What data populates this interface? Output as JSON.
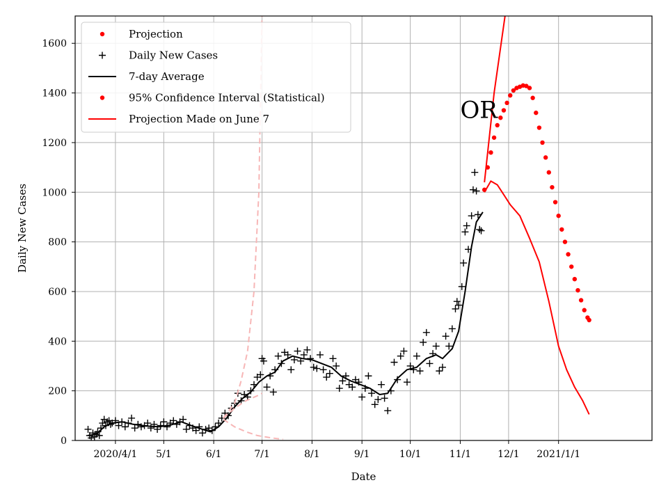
{
  "chart_data": {
    "type": "line",
    "title": "",
    "xlabel": "Date",
    "ylabel": "Daily New Cases",
    "xlim": [
      "2020-03-07",
      "2021-02-28"
    ],
    "ylim": [
      0,
      1710
    ],
    "grid": true,
    "legend_position": "top-left",
    "x_ticks": [
      {
        "date": "2020-04-01",
        "label": "2020/4/1"
      },
      {
        "date": "2020-05-01",
        "label": "5/1"
      },
      {
        "date": "2020-06-01",
        "label": "6/1"
      },
      {
        "date": "2020-07-01",
        "label": "7/1"
      },
      {
        "date": "2020-08-01",
        "label": "8/1"
      },
      {
        "date": "2020-09-01",
        "label": "9/1"
      },
      {
        "date": "2020-10-01",
        "label": "10/1"
      },
      {
        "date": "2020-11-01",
        "label": "11/1"
      },
      {
        "date": "2020-12-01",
        "label": "12/1"
      },
      {
        "date": "2021-01-01",
        "label": "2021/1/1"
      }
    ],
    "y_ticks": [
      0,
      200,
      400,
      600,
      800,
      1000,
      1200,
      1400,
      1600
    ],
    "legend": [
      {
        "label": "Projection",
        "marker": "dot",
        "color": "#ff0000"
      },
      {
        "label": "Daily New Cases",
        "marker": "plus",
        "color": "#000000"
      },
      {
        "label": "7-day Average",
        "marker": "line",
        "color": "#000000"
      },
      {
        "label": "95% Confidence Interval (Statistical)",
        "marker": "dot",
        "color": "#ff0000"
      },
      {
        "label": "Projection Made on June 7",
        "marker": "line",
        "color": "#ff0000"
      }
    ],
    "annotations": [
      {
        "text": "OR",
        "date": "2020-11-01",
        "value": 1300
      }
    ],
    "series": [
      {
        "name": "Daily New Cases",
        "style": "plus",
        "color": "#000000",
        "points": [
          [
            "2020-03-15",
            45
          ],
          [
            "2020-03-16",
            20
          ],
          [
            "2020-03-17",
            10
          ],
          [
            "2020-03-18",
            30
          ],
          [
            "2020-03-19",
            15
          ],
          [
            "2020-03-20",
            25
          ],
          [
            "2020-03-21",
            35
          ],
          [
            "2020-03-22",
            20
          ],
          [
            "2020-03-23",
            50
          ],
          [
            "2020-03-24",
            70
          ],
          [
            "2020-03-25",
            85
          ],
          [
            "2020-03-26",
            60
          ],
          [
            "2020-03-27",
            75
          ],
          [
            "2020-03-28",
            80
          ],
          [
            "2020-03-29",
            65
          ],
          [
            "2020-03-30",
            70
          ],
          [
            "2020-04-01",
            80
          ],
          [
            "2020-04-03",
            60
          ],
          [
            "2020-04-05",
            75
          ],
          [
            "2020-04-07",
            55
          ],
          [
            "2020-04-09",
            70
          ],
          [
            "2020-04-11",
            90
          ],
          [
            "2020-04-13",
            50
          ],
          [
            "2020-04-15",
            65
          ],
          [
            "2020-04-17",
            55
          ],
          [
            "2020-04-19",
            60
          ],
          [
            "2020-04-21",
            70
          ],
          [
            "2020-04-23",
            50
          ],
          [
            "2020-04-25",
            65
          ],
          [
            "2020-04-27",
            45
          ],
          [
            "2020-04-29",
            60
          ],
          [
            "2020-05-01",
            75
          ],
          [
            "2020-05-03",
            55
          ],
          [
            "2020-05-05",
            70
          ],
          [
            "2020-05-07",
            80
          ],
          [
            "2020-05-09",
            65
          ],
          [
            "2020-05-11",
            75
          ],
          [
            "2020-05-13",
            85
          ],
          [
            "2020-05-15",
            45
          ],
          [
            "2020-05-17",
            60
          ],
          [
            "2020-05-19",
            50
          ],
          [
            "2020-05-21",
            40
          ],
          [
            "2020-05-23",
            55
          ],
          [
            "2020-05-25",
            30
          ],
          [
            "2020-05-27",
            45
          ],
          [
            "2020-05-29",
            50
          ],
          [
            "2020-05-31",
            40
          ],
          [
            "2020-06-02",
            55
          ],
          [
            "2020-06-04",
            70
          ],
          [
            "2020-06-06",
            90
          ],
          [
            "2020-06-08",
            110
          ],
          [
            "2020-06-10",
            100
          ],
          [
            "2020-06-12",
            130
          ],
          [
            "2020-06-14",
            150
          ],
          [
            "2020-06-16",
            190
          ],
          [
            "2020-06-18",
            160
          ],
          [
            "2020-06-20",
            185
          ],
          [
            "2020-06-22",
            175
          ],
          [
            "2020-06-24",
            200
          ],
          [
            "2020-06-26",
            225
          ],
          [
            "2020-06-28",
            255
          ],
          [
            "2020-06-30",
            265
          ],
          [
            "2020-07-01",
            330
          ],
          [
            "2020-07-02",
            320
          ],
          [
            "2020-07-04",
            215
          ],
          [
            "2020-07-06",
            260
          ],
          [
            "2020-07-08",
            195
          ],
          [
            "2020-07-09",
            285
          ],
          [
            "2020-07-11",
            340
          ],
          [
            "2020-07-13",
            310
          ],
          [
            "2020-07-15",
            355
          ],
          [
            "2020-07-17",
            345
          ],
          [
            "2020-07-19",
            285
          ],
          [
            "2020-07-21",
            325
          ],
          [
            "2020-07-23",
            360
          ],
          [
            "2020-07-25",
            320
          ],
          [
            "2020-07-27",
            345
          ],
          [
            "2020-07-29",
            365
          ],
          [
            "2020-07-31",
            330
          ],
          [
            "2020-08-02",
            295
          ],
          [
            "2020-08-04",
            290
          ],
          [
            "2020-08-06",
            345
          ],
          [
            "2020-08-08",
            285
          ],
          [
            "2020-08-10",
            255
          ],
          [
            "2020-08-12",
            270
          ],
          [
            "2020-08-14",
            330
          ],
          [
            "2020-08-16",
            300
          ],
          [
            "2020-08-18",
            210
          ],
          [
            "2020-08-20",
            240
          ],
          [
            "2020-08-22",
            260
          ],
          [
            "2020-08-24",
            225
          ],
          [
            "2020-08-26",
            215
          ],
          [
            "2020-08-28",
            245
          ],
          [
            "2020-08-30",
            235
          ],
          [
            "2020-09-01",
            175
          ],
          [
            "2020-09-03",
            210
          ],
          [
            "2020-09-05",
            260
          ],
          [
            "2020-09-07",
            190
          ],
          [
            "2020-09-09",
            145
          ],
          [
            "2020-09-11",
            165
          ],
          [
            "2020-09-13",
            225
          ],
          [
            "2020-09-15",
            170
          ],
          [
            "2020-09-17",
            120
          ],
          [
            "2020-09-19",
            200
          ],
          [
            "2020-09-21",
            315
          ],
          [
            "2020-09-23",
            245
          ],
          [
            "2020-09-25",
            340
          ],
          [
            "2020-09-27",
            360
          ],
          [
            "2020-09-29",
            235
          ],
          [
            "2020-10-01",
            300
          ],
          [
            "2020-10-03",
            285
          ],
          [
            "2020-10-05",
            340
          ],
          [
            "2020-10-07",
            280
          ],
          [
            "2020-10-09",
            395
          ],
          [
            "2020-10-11",
            435
          ],
          [
            "2020-10-13",
            310
          ],
          [
            "2020-10-15",
            350
          ],
          [
            "2020-10-17",
            380
          ],
          [
            "2020-10-19",
            280
          ],
          [
            "2020-10-21",
            295
          ],
          [
            "2020-10-23",
            420
          ],
          [
            "2020-10-25",
            380
          ],
          [
            "2020-10-27",
            450
          ],
          [
            "2020-10-29",
            530
          ],
          [
            "2020-10-30",
            560
          ],
          [
            "2020-10-31",
            545
          ],
          [
            "2020-11-02",
            620
          ],
          [
            "2020-11-03",
            715
          ],
          [
            "2020-11-04",
            840
          ],
          [
            "2020-11-05",
            865
          ],
          [
            "2020-11-06",
            770
          ],
          [
            "2020-11-08",
            905
          ],
          [
            "2020-11-09",
            1010
          ],
          [
            "2020-11-10",
            1080
          ],
          [
            "2020-11-11",
            1005
          ],
          [
            "2020-11-12",
            910
          ],
          [
            "2020-11-13",
            850
          ],
          [
            "2020-11-14",
            845
          ]
        ]
      },
      {
        "name": "7-day Average",
        "style": "line",
        "color": "#000000",
        "points": [
          [
            "2020-03-15",
            20
          ],
          [
            "2020-03-20",
            25
          ],
          [
            "2020-03-25",
            55
          ],
          [
            "2020-03-30",
            70
          ],
          [
            "2020-04-05",
            75
          ],
          [
            "2020-04-12",
            65
          ],
          [
            "2020-04-20",
            58
          ],
          [
            "2020-04-28",
            55
          ],
          [
            "2020-05-05",
            62
          ],
          [
            "2020-05-12",
            75
          ],
          [
            "2020-05-18",
            60
          ],
          [
            "2020-05-25",
            45
          ],
          [
            "2020-05-30",
            35
          ],
          [
            "2020-06-04",
            55
          ],
          [
            "2020-06-09",
            90
          ],
          [
            "2020-06-14",
            135
          ],
          [
            "2020-06-19",
            170
          ],
          [
            "2020-06-24",
            195
          ],
          [
            "2020-06-29",
            235
          ],
          [
            "2020-07-04",
            260
          ],
          [
            "2020-07-09",
            275
          ],
          [
            "2020-07-14",
            320
          ],
          [
            "2020-07-20",
            340
          ],
          [
            "2020-07-26",
            330
          ],
          [
            "2020-08-01",
            325
          ],
          [
            "2020-08-07",
            310
          ],
          [
            "2020-08-13",
            295
          ],
          [
            "2020-08-19",
            260
          ],
          [
            "2020-08-25",
            240
          ],
          [
            "2020-08-31",
            225
          ],
          [
            "2020-09-06",
            210
          ],
          [
            "2020-09-12",
            185
          ],
          [
            "2020-09-17",
            190
          ],
          [
            "2020-09-23",
            250
          ],
          [
            "2020-09-29",
            285
          ],
          [
            "2020-10-05",
            295
          ],
          [
            "2020-10-11",
            330
          ],
          [
            "2020-10-17",
            345
          ],
          [
            "2020-10-21",
            330
          ],
          [
            "2020-10-27",
            370
          ],
          [
            "2020-10-31",
            440
          ],
          [
            "2020-11-04",
            600
          ],
          [
            "2020-11-08",
            780
          ],
          [
            "2020-11-11",
            880
          ],
          [
            "2020-11-15",
            920
          ]
        ]
      },
      {
        "name": "Projection",
        "style": "dots",
        "color": "#ff0000",
        "points": [
          [
            "2020-11-16",
            1010
          ],
          [
            "2020-11-18",
            1100
          ],
          [
            "2020-11-20",
            1160
          ],
          [
            "2020-11-22",
            1220
          ],
          [
            "2020-11-24",
            1270
          ],
          [
            "2020-11-26",
            1300
          ],
          [
            "2020-11-28",
            1330
          ],
          [
            "2020-11-30",
            1360
          ],
          [
            "2020-12-02",
            1390
          ],
          [
            "2020-12-04",
            1410
          ],
          [
            "2020-12-06",
            1420
          ],
          [
            "2020-12-08",
            1425
          ],
          [
            "2020-12-10",
            1430
          ],
          [
            "2020-12-12",
            1428
          ],
          [
            "2020-12-14",
            1420
          ],
          [
            "2020-12-16",
            1380
          ],
          [
            "2020-12-18",
            1320
          ],
          [
            "2020-12-20",
            1260
          ],
          [
            "2020-12-22",
            1200
          ],
          [
            "2020-12-24",
            1140
          ],
          [
            "2020-12-26",
            1080
          ],
          [
            "2020-12-28",
            1020
          ],
          [
            "2020-12-30",
            960
          ],
          [
            "2021-01-01",
            905
          ],
          [
            "2021-01-03",
            850
          ],
          [
            "2021-01-05",
            800
          ],
          [
            "2021-01-07",
            750
          ],
          [
            "2021-01-09",
            700
          ],
          [
            "2021-01-11",
            650
          ],
          [
            "2021-01-13",
            605
          ],
          [
            "2021-01-15",
            565
          ],
          [
            "2021-01-17",
            525
          ],
          [
            "2021-01-19",
            495
          ],
          [
            "2021-01-20",
            485
          ]
        ]
      },
      {
        "name": "95% Confidence Interval (Statistical)",
        "style": "line",
        "color": "#ff0000",
        "points": [
          [
            "2020-11-16",
            1000
          ],
          [
            "2020-11-20",
            1045
          ],
          [
            "2020-11-24",
            1030
          ],
          [
            "2020-11-28",
            990
          ],
          [
            "2020-12-02",
            950
          ],
          [
            "2020-12-08",
            905
          ],
          [
            "2020-12-14",
            815
          ],
          [
            "2020-12-20",
            720
          ],
          [
            "2020-12-26",
            560
          ],
          [
            "2021-01-01",
            380
          ],
          [
            "2021-01-06",
            285
          ],
          [
            "2021-01-11",
            215
          ],
          [
            "2021-01-16",
            160
          ],
          [
            "2021-01-20",
            105
          ]
        ]
      },
      {
        "name": "95% Confidence Interval (Statistical) upper",
        "style": "line",
        "color": "#ff0000",
        "points": [
          [
            "2020-11-16",
            1040
          ],
          [
            "2020-11-22",
            1400
          ],
          [
            "2020-11-29",
            1720
          ]
        ]
      },
      {
        "name": "Projection Made on June 7",
        "style": "dashed",
        "color": "#f7b6b6",
        "points": [
          [
            "2020-06-07",
            90
          ],
          [
            "2020-06-14",
            150
          ],
          [
            "2020-06-18",
            240
          ],
          [
            "2020-06-22",
            360
          ],
          [
            "2020-06-26",
            600
          ],
          [
            "2020-06-29",
            1000
          ],
          [
            "2020-07-01",
            1720
          ]
        ]
      },
      {
        "name": "Projection Made on June 7 middle",
        "style": "dashed",
        "color": "#f7b6b6",
        "points": [
          [
            "2020-06-07",
            90
          ],
          [
            "2020-06-14",
            130
          ],
          [
            "2020-06-21",
            160
          ],
          [
            "2020-06-28",
            180
          ],
          [
            "2020-07-01",
            190
          ]
        ]
      },
      {
        "name": "Projection Made on June 7 lower",
        "style": "dashed",
        "color": "#f7b6b6",
        "points": [
          [
            "2020-06-07",
            85
          ],
          [
            "2020-06-14",
            55
          ],
          [
            "2020-06-21",
            35
          ],
          [
            "2020-06-28",
            20
          ],
          [
            "2020-07-07",
            10
          ],
          [
            "2020-07-14",
            5
          ]
        ]
      }
    ]
  }
}
